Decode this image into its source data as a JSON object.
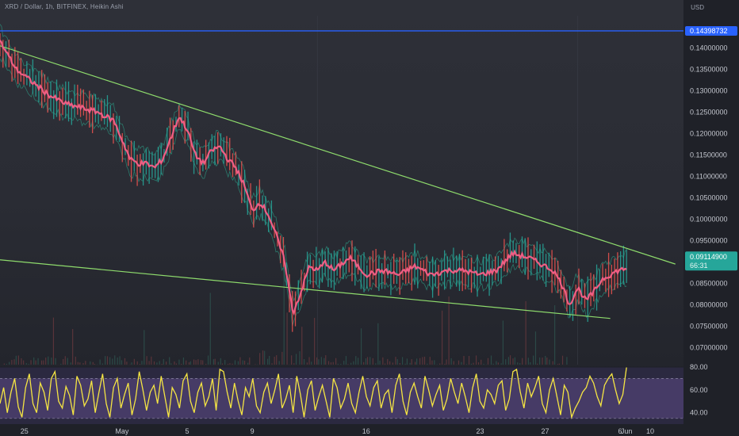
{
  "header": {
    "title": "XRD / Dollar, 1h, BITFINEX, Heikin Ashi",
    "currency": "USD"
  },
  "price_badges": {
    "resistance": "0.14398732",
    "last_price": "0.09114900",
    "countdown": "66:31"
  },
  "colors": {
    "accent_blue": "#2962ff",
    "last_price_bg": "#26a69a",
    "trendline": "#8edb6c",
    "ma_line": "#ef5e84",
    "rsi_line": "#f5e543",
    "rsi_band": "#5c4a85"
  },
  "chart_data": [
    {
      "type": "line",
      "title": "XRD / Dollar, 1h, BITFINEX, Heikin Ashi",
      "y_ticks": [
        "0.14000000",
        "0.13500000",
        "0.13000000",
        "0.12500000",
        "0.12000000",
        "0.11500000",
        "0.11000000",
        "0.10500000",
        "0.10000000",
        "0.09500000",
        "0.08500000",
        "0.08000000",
        "0.07500000",
        "0.07000000"
      ],
      "x_ticks": [
        "25",
        "May",
        "5",
        "9",
        "16",
        "23",
        "27",
        "Jun",
        "6",
        "10"
      ],
      "ylim": [
        0.066,
        0.1475
      ],
      "x_day_range": [
        -7.5,
        34.5
      ],
      "series": [
        {
          "values_x_days": [
            -7.5,
            -6.5,
            -5.5,
            -4.5,
            -3.5,
            -2.5,
            -1.5,
            -0.5,
            0.5,
            1.0,
            1.5,
            2.0,
            2.5,
            3.0,
            3.5,
            4.0,
            4.5,
            5.0,
            5.5,
            6.0,
            6.5,
            7.0,
            7.5,
            8.0,
            8.5,
            9.0,
            9.5,
            10.0,
            10.5,
            11.0,
            11.5,
            12.0,
            12.5,
            13.0,
            14.0,
            15.0,
            16.0,
            17.0,
            18.0,
            19.0,
            20.0,
            21.0,
            22.0,
            23.0,
            24.0,
            25.0,
            26.0,
            26.5,
            27.0,
            27.5,
            28.0,
            28.5,
            29.0,
            29.5,
            30.0,
            30.5,
            31.0
          ],
          "values": [
            0.1415,
            0.135,
            0.132,
            0.129,
            0.127,
            0.126,
            0.125,
            0.123,
            0.114,
            0.113,
            0.113,
            0.112,
            0.114,
            0.119,
            0.124,
            0.121,
            0.115,
            0.113,
            0.116,
            0.117,
            0.114,
            0.112,
            0.108,
            0.102,
            0.104,
            0.101,
            0.096,
            0.09,
            0.078,
            0.083,
            0.089,
            0.088,
            0.09,
            0.088,
            0.091,
            0.087,
            0.088,
            0.087,
            0.089,
            0.087,
            0.088,
            0.088,
            0.087,
            0.088,
            0.092,
            0.091,
            0.089,
            0.088,
            0.085,
            0.08,
            0.084,
            0.081,
            0.083,
            0.086,
            0.087,
            0.088,
            0.0885
          ]
        }
      ],
      "trendlines": [
        {
          "from": [
            -7.5,
            0.1405
          ],
          "to": [
            34.0,
            0.0895
          ]
        },
        {
          "from": [
            -7.5,
            0.0905
          ],
          "to": [
            30.0,
            0.0768
          ]
        }
      ],
      "horizontal_level": 0.14398732,
      "last_price": 0.091149,
      "grid": false
    },
    {
      "type": "line",
      "title": "",
      "y_ticks": [
        "80.00",
        "60.00",
        "40.00"
      ],
      "ylim": [
        30,
        80
      ],
      "bands": [
        70,
        35
      ],
      "values": [
        48,
        62,
        40,
        58,
        70,
        45,
        36,
        62,
        74,
        48,
        40,
        66,
        58,
        42,
        70,
        76,
        50,
        44,
        63,
        55,
        38,
        72,
        64,
        46,
        52,
        68,
        40,
        58,
        74,
        48,
        36,
        62,
        70,
        44,
        56,
        66,
        38,
        52,
        76,
        60,
        42,
        58,
        64,
        48,
        72,
        54,
        36,
        62,
        56,
        44,
        68,
        74,
        50,
        40,
        58,
        66,
        46,
        54,
        70,
        42,
        78,
        76,
        58,
        44,
        66,
        50,
        38,
        62,
        54,
        70,
        46,
        40,
        58,
        66,
        48,
        60,
        74,
        44,
        52,
        64,
        40,
        72,
        56,
        36,
        60,
        68,
        42,
        54,
        64,
        50,
        36,
        70,
        62,
        44,
        52,
        66,
        48,
        40,
        58,
        72,
        54,
        46,
        62,
        68,
        44,
        56,
        60,
        40,
        64,
        74,
        50,
        38,
        58,
        66,
        54,
        44,
        72,
        60,
        46,
        56,
        64,
        42,
        52,
        70,
        58,
        48,
        66,
        54,
        40,
        62,
        74,
        50,
        44,
        60,
        56,
        48,
        64,
        68,
        42,
        52,
        76,
        78,
        58,
        44,
        66,
        54,
        62,
        72,
        48,
        40,
        60,
        70,
        54,
        38,
        64,
        58,
        36,
        44,
        50,
        58,
        62,
        72,
        66,
        54,
        46,
        64,
        70,
        74,
        60,
        48,
        56,
        80
      ]
    }
  ]
}
